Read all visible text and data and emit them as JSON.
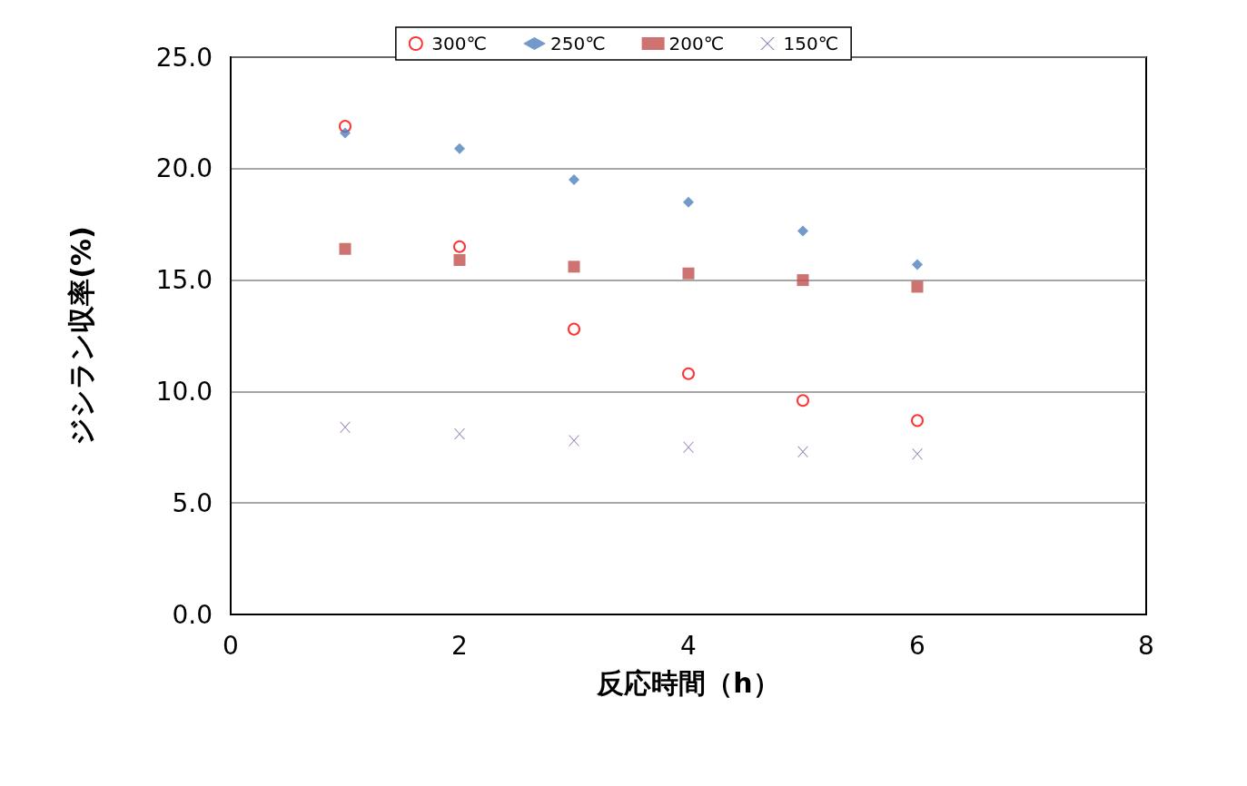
{
  "chart_data": {
    "type": "scatter",
    "xlabel": "反応時間（h）",
    "ylabel": "ジシラン収率(%)",
    "x": [
      1,
      2,
      3,
      4,
      5,
      6
    ],
    "series": [
      {
        "name": "300℃",
        "color": "#ff0000",
        "marker": "circle",
        "values": [
          21.9,
          16.5,
          12.8,
          10.8,
          9.6,
          8.7
        ]
      },
      {
        "name": "250℃",
        "color": "#4f81bd",
        "marker": "diamond",
        "values": [
          21.6,
          20.9,
          19.5,
          18.5,
          17.2,
          15.7
        ]
      },
      {
        "name": "200℃",
        "color": "#c0504d",
        "marker": "square",
        "values": [
          16.4,
          15.9,
          15.6,
          15.3,
          15.0,
          14.7
        ]
      },
      {
        "name": "150℃",
        "color": "#8064a2",
        "marker": "cross",
        "values": [
          8.4,
          8.1,
          7.8,
          7.5,
          7.3,
          7.2
        ]
      }
    ],
    "xlim": [
      0,
      8
    ],
    "xticks": [
      0,
      2,
      4,
      6,
      8
    ],
    "ylim": [
      0,
      25
    ],
    "yticks": [
      {
        "value": 0,
        "label": "0.0"
      },
      {
        "value": 5,
        "label": "5.0"
      },
      {
        "value": 10,
        "label": "10.0"
      },
      {
        "value": 15,
        "label": "15.0"
      },
      {
        "value": 20,
        "label": "20.0"
      },
      {
        "value": 25,
        "label": "25.0"
      }
    ],
    "grid": "y",
    "legend": "top"
  }
}
